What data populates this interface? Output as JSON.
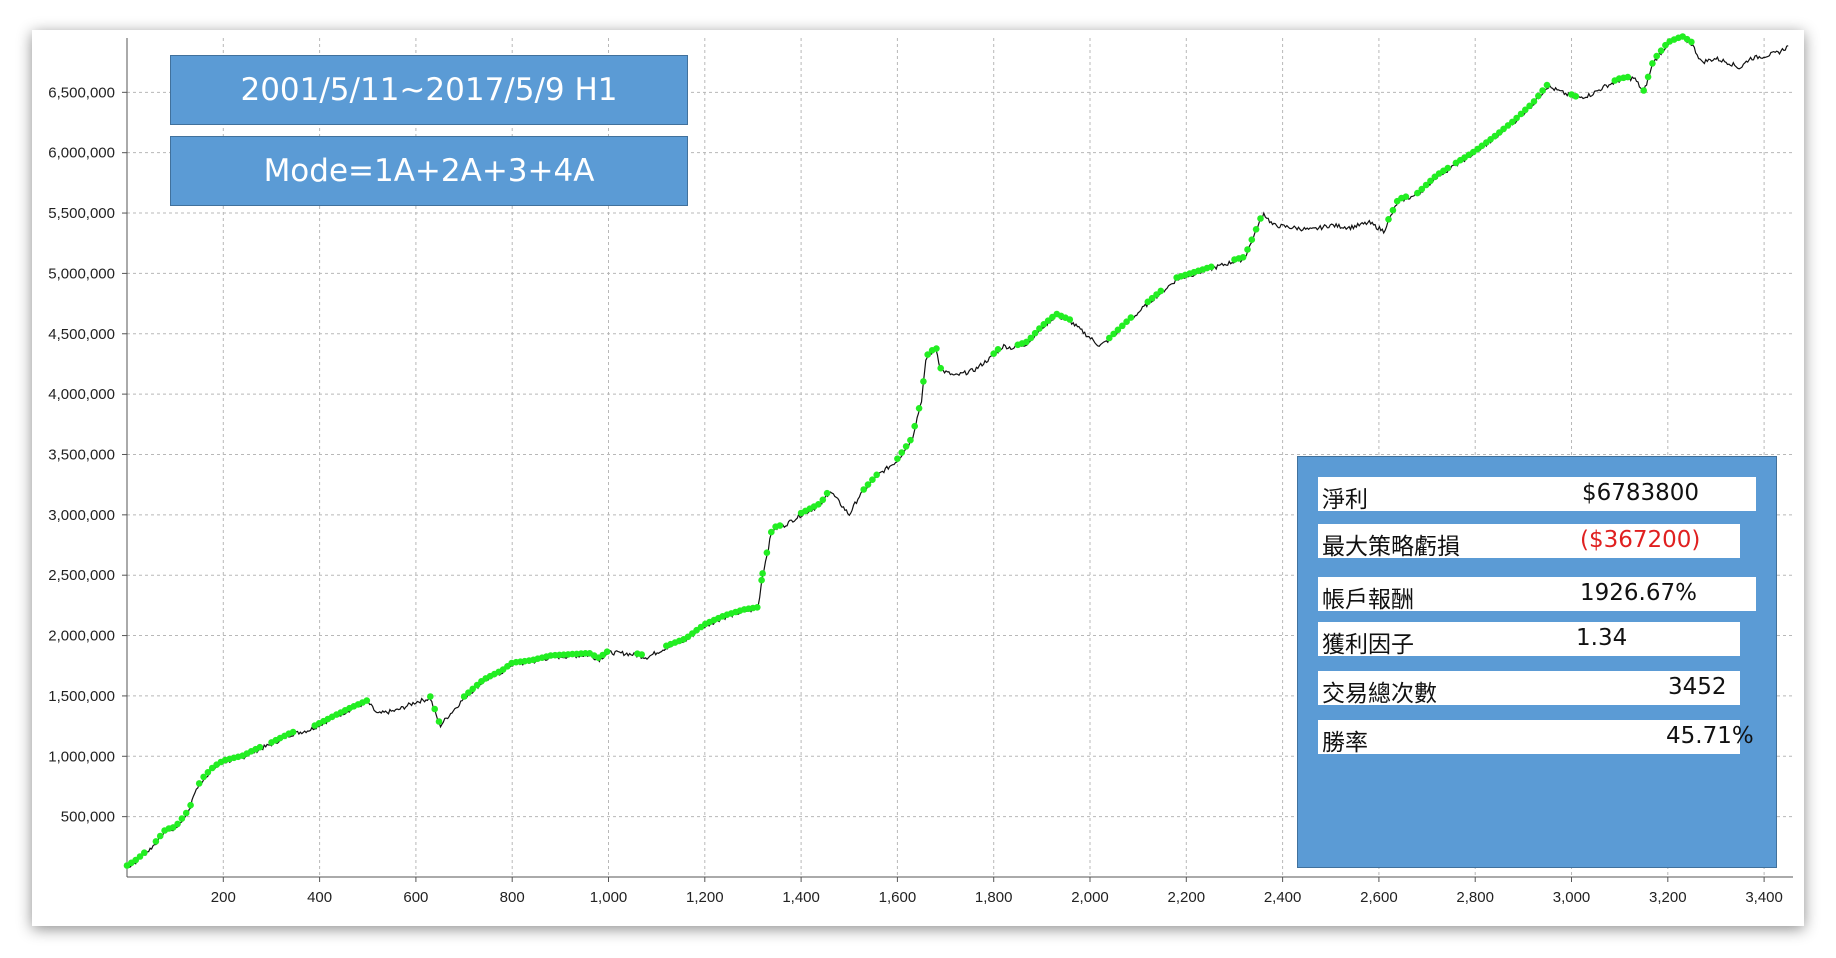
{
  "annotations": {
    "date_range": "2001/5/11~2017/5/9 H1",
    "mode": "Mode=1A+2A+3+4A"
  },
  "stats": [
    {
      "label": "淨利",
      "value": "$6783800",
      "value_color": "#111111"
    },
    {
      "label": "最大策略虧損",
      "value": "($367200)",
      "value_color": "#e02020"
    },
    {
      "label": "帳戶報酬",
      "value": "1926.67%",
      "value_color": "#111111"
    },
    {
      "label": "獲利因子",
      "value": "1.34",
      "value_color": "#111111"
    },
    {
      "label": "交易總次數",
      "value": "3452",
      "value_color": "#111111"
    },
    {
      "label": "勝率",
      "value": "45.71%",
      "value_color": "#111111"
    }
  ],
  "colors": {
    "line": "#111111",
    "new_high_marker": "#22ee22",
    "panel": "#5b9bd5",
    "grid": "#b8b8b8"
  },
  "chart_data": {
    "type": "line",
    "title": "",
    "xlabel": "",
    "ylabel": "",
    "xlim": [
      0,
      3460
    ],
    "ylim": [
      0,
      6950000
    ],
    "grid": true,
    "x_ticks": [
      200,
      400,
      600,
      800,
      1000,
      1200,
      1400,
      1600,
      1800,
      2000,
      2200,
      2400,
      2600,
      2800,
      3000,
      3200,
      3400
    ],
    "x_tick_labels": [
      "200",
      "400",
      "600",
      "800",
      "1,000",
      "1,200",
      "1,400",
      "1,600",
      "1,800",
      "2,000",
      "2,200",
      "2,400",
      "2,600",
      "2,800",
      "3,000",
      "3,200",
      "3,400"
    ],
    "y_ticks": [
      500000,
      1000000,
      1500000,
      2000000,
      2500000,
      3000000,
      3500000,
      4000000,
      4500000,
      5000000,
      5500000,
      6000000,
      6500000
    ],
    "y_tick_labels": [
      "500,000",
      "1,000,000",
      "1,500,000",
      "2,000,000",
      "2,500,000",
      "3,000,000",
      "3,500,000",
      "4,000,000",
      "4,500,000",
      "5,000,000",
      "5,500,000",
      "6,000,000",
      "6,500,000"
    ],
    "series": [
      {
        "x": [
          0,
          20,
          40,
          60,
          80,
          100,
          130,
          140,
          160,
          180,
          200,
          240,
          270,
          300,
          340,
          380,
          420,
          460,
          500,
          520,
          560,
          600,
          630,
          650,
          660,
          700,
          740,
          780,
          800,
          840,
          880,
          920,
          960,
          980,
          1000,
          1040,
          1080,
          1120,
          1160,
          1200,
          1240,
          1280,
          1310,
          1320,
          1340,
          1360,
          1400,
          1440,
          1460,
          1500,
          1520,
          1560,
          1600,
          1630,
          1650,
          1660,
          1680,
          1690,
          1720,
          1760,
          1800,
          1820,
          1840,
          1870,
          1900,
          1930,
          1960,
          1990,
          2020,
          2040,
          2080,
          2120,
          2150,
          2180,
          2220,
          2260,
          2300,
          2320,
          2340,
          2360,
          2380,
          2420,
          2460,
          2500,
          2540,
          2580,
          2610,
          2640,
          2680,
          2720,
          2760,
          2800,
          2840,
          2880,
          2920,
          2950,
          2980,
          3010,
          3040,
          3070,
          3100,
          3130,
          3150,
          3170,
          3200,
          3230,
          3250,
          3270,
          3300,
          3330,
          3350,
          3370,
          3400,
          3430,
          3450
        ],
        "y": [
          80000,
          130000,
          200000,
          280000,
          380000,
          400000,
          550000,
          700000,
          820000,
          900000,
          950000,
          990000,
          1050000,
          1100000,
          1180000,
          1220000,
          1300000,
          1380000,
          1450000,
          1350000,
          1380000,
          1450000,
          1480000,
          1250000,
          1300000,
          1480000,
          1620000,
          1700000,
          1760000,
          1780000,
          1820000,
          1830000,
          1840000,
          1800000,
          1860000,
          1850000,
          1820000,
          1900000,
          1960000,
          2080000,
          2150000,
          2200000,
          2220000,
          2500000,
          2880000,
          2900000,
          3000000,
          3080000,
          3200000,
          3000000,
          3150000,
          3330000,
          3450000,
          3620000,
          3950000,
          4300000,
          4380000,
          4200000,
          4150000,
          4200000,
          4320000,
          4400000,
          4380000,
          4420000,
          4550000,
          4650000,
          4600000,
          4500000,
          4400000,
          4450000,
          4600000,
          4750000,
          4850000,
          4950000,
          5000000,
          5050000,
          5100000,
          5120000,
          5300000,
          5500000,
          5400000,
          5380000,
          5360000,
          5400000,
          5380000,
          5420000,
          5350000,
          5600000,
          5650000,
          5800000,
          5900000,
          6000000,
          6120000,
          6250000,
          6400000,
          6550000,
          6500000,
          6450000,
          6480000,
          6550000,
          6600000,
          6620000,
          6500000,
          6750000,
          6900000,
          6950000,
          6900000,
          6750000,
          6780000,
          6740000,
          6700000,
          6780000,
          6800000,
          6830000,
          6880000
        ]
      }
    ],
    "new_high_ranges": [
      [
        0,
        40
      ],
      [
        60,
        140
      ],
      [
        150,
        280
      ],
      [
        300,
        350
      ],
      [
        390,
        500
      ],
      [
        630,
        650
      ],
      [
        700,
        1000
      ],
      [
        1060,
        1070
      ],
      [
        1120,
        1320
      ],
      [
        1320,
        1360
      ],
      [
        1400,
        1460
      ],
      [
        1530,
        1560
      ],
      [
        1600,
        1690
      ],
      [
        1800,
        1810
      ],
      [
        1850,
        1960
      ],
      [
        2040,
        2090
      ],
      [
        2120,
        2150
      ],
      [
        2180,
        2260
      ],
      [
        2300,
        2360
      ],
      [
        2620,
        2660
      ],
      [
        2680,
        2750
      ],
      [
        2760,
        2950
      ],
      [
        3000,
        3010
      ],
      [
        3090,
        3120
      ],
      [
        3150,
        3250
      ]
    ]
  }
}
